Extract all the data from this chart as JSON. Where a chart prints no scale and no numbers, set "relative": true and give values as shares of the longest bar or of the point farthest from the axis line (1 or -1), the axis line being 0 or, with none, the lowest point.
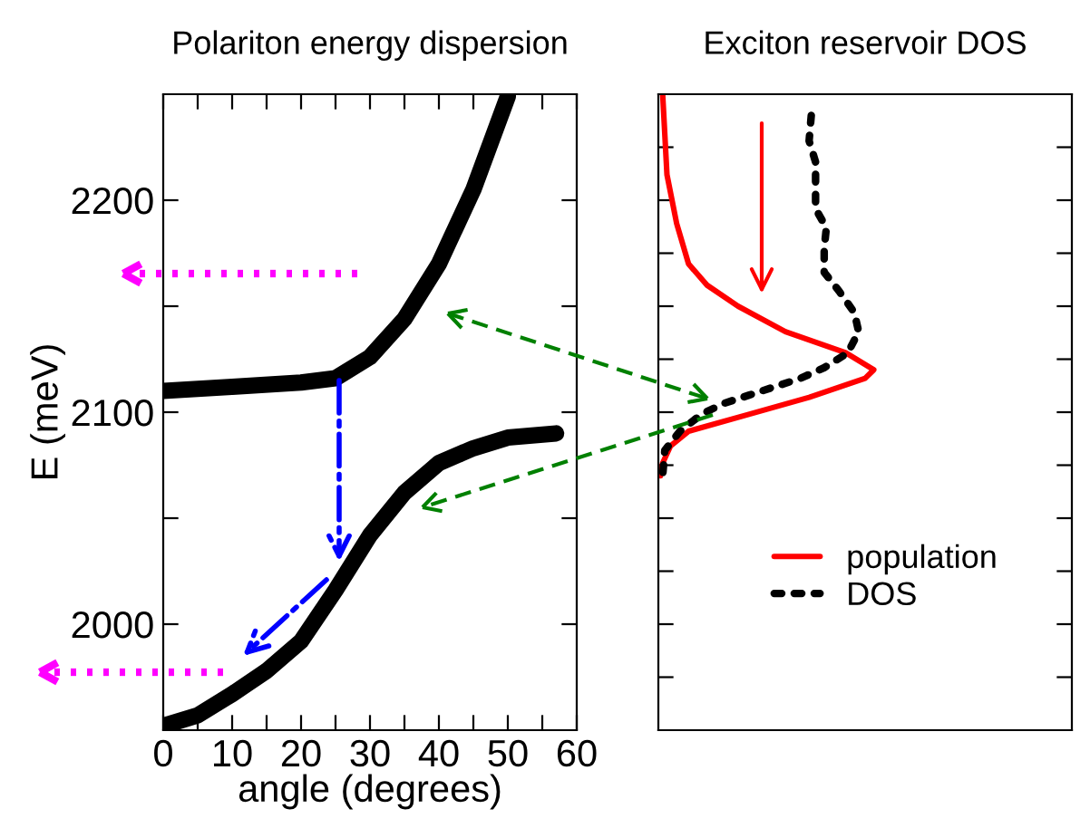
{
  "chart_data": [
    {
      "type": "line",
      "title": "Polariton energy dispersion",
      "xlabel": "angle (degrees)",
      "ylabel": "E (meV)",
      "xlim": [
        0,
        60
      ],
      "xticks": [
        0,
        {
          "value": 5,
          "label": null
        },
        10,
        {
          "value": 15,
          "label": null
        },
        20,
        {
          "value": 25,
          "label": null
        },
        30,
        {
          "value": 35,
          "label": null
        },
        40,
        {
          "value": 45,
          "label": null
        },
        50,
        {
          "value": 55,
          "label": null
        },
        60
      ],
      "ylim": [
        1950,
        2250
      ],
      "yticks": [
        2000,
        {
          "value": 2050,
          "label": null
        },
        2100,
        {
          "value": 2150,
          "label": null
        },
        2200
      ],
      "grid": false,
      "line_style": "solid",
      "series": [
        {
          "color": "#000000",
          "x": [
            0,
            10,
            20,
            25,
            30,
            35,
            40,
            45,
            50
          ],
          "values": [
            2110,
            2112,
            2114,
            2116,
            2126,
            2144,
            2170,
            2205,
            2249
          ]
        },
        {
          "color": "#000000",
          "x": [
            0,
            5,
            10,
            15,
            20,
            25,
            30,
            35,
            40,
            45,
            50,
            57
          ],
          "values": [
            1952,
            1957,
            1967,
            1978,
            1992,
            2016,
            2042,
            2062,
            2076,
            2083,
            2088,
            2090
          ]
        }
      ]
    },
    {
      "type": "line",
      "title": "Exciton reservoir DOS",
      "orientation": "horizontal",
      "relative": true,
      "ylim": [
        1950,
        2250
      ],
      "yticks": [
        1975,
        2000,
        2025,
        2050,
        2075,
        2100,
        2125,
        2150,
        2175,
        2200,
        2225
      ],
      "tick_labels": false,
      "grid": false,
      "legend": "bottom",
      "series": [
        {
          "name": "population",
          "color": "#ff0000",
          "line_style": "solid",
          "x": [
            2250,
            2212,
            2189,
            2170,
            2160,
            2150,
            2138,
            2128,
            2120,
            2116,
            2107,
            2099,
            2091,
            2084,
            2076,
            2070
          ],
          "values": [
            0.02,
            0.04,
            0.085,
            0.14,
            0.225,
            0.37,
            0.59,
            0.87,
            1.0,
            0.96,
            0.7,
            0.42,
            0.14,
            0.056,
            0.02,
            0.01
          ]
        },
        {
          "name": "DOS",
          "color": "#000000",
          "line_style": "dotted",
          "x": [
            2240,
            2228,
            2218,
            2196,
            2187,
            2177,
            2166,
            2157,
            2147,
            2138,
            2128,
            2121,
            2116,
            2112,
            2108,
            2104,
            2099,
            2091,
            2082,
            2070
          ],
          "values": [
            0.71,
            0.7,
            0.73,
            0.73,
            0.78,
            0.77,
            0.77,
            0.84,
            0.91,
            0.93,
            0.88,
            0.77,
            0.66,
            0.54,
            0.42,
            0.3,
            0.2,
            0.1,
            0.03,
            0.02
          ]
        }
      ]
    }
  ]
}
